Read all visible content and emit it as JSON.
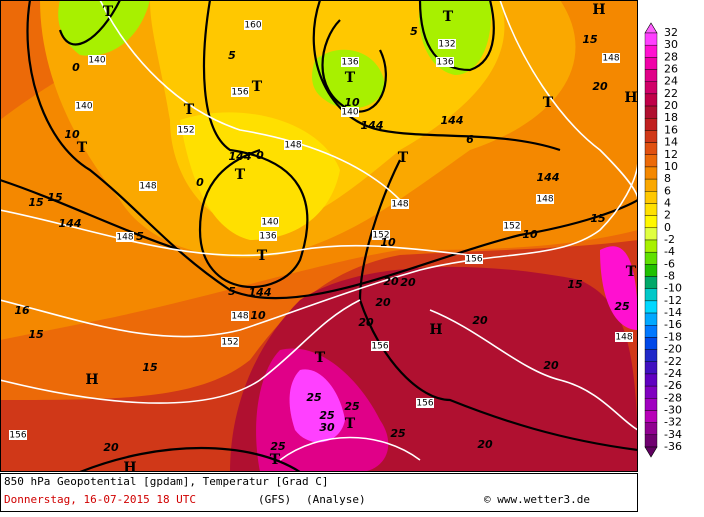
{
  "map": {
    "labels": [
      "T",
      "140",
      "0",
      "10",
      "T",
      "140",
      "160",
      "5",
      "156",
      "T",
      "T",
      "152",
      "148",
      "144",
      "15",
      "15",
      "148",
      "5",
      "144",
      "0",
      "T",
      "0",
      "148",
      "140",
      "136",
      "T",
      "5",
      "144",
      "148",
      "10",
      "152",
      "T",
      "136",
      "10",
      "140",
      "144",
      "T",
      "5",
      "132",
      "136",
      "144",
      "6",
      "T",
      "148",
      "152",
      "10",
      "156",
      "152",
      "10",
      "148",
      "144",
      "T",
      "H",
      "15",
      "148",
      "20",
      "H",
      "15",
      "T",
      "15",
      "25",
      "148",
      "20",
      "20",
      "20",
      "20",
      "H",
      "20",
      "156",
      "20",
      "156",
      "20",
      "25",
      "T",
      "25",
      "25",
      "25",
      "30",
      "T",
      "25",
      "T",
      "H",
      "15",
      "16",
      "15",
      "156",
      "20",
      "H"
    ]
  },
  "colorbar": {
    "ticks": [
      32,
      30,
      28,
      26,
      24,
      22,
      20,
      18,
      16,
      14,
      12,
      10,
      8,
      6,
      4,
      2,
      0,
      -2,
      -4,
      -6,
      -8,
      -10,
      -12,
      -14,
      -16,
      -18,
      -20,
      -22,
      -24,
      -26,
      -28,
      -30,
      -32,
      -34,
      -36
    ],
    "colors": [
      "#ff40ff",
      "#ff10d0",
      "#f000a8",
      "#e00088",
      "#d00068",
      "#c00048",
      "#b01030",
      "#c02020",
      "#d03818",
      "#e05010",
      "#ec6a08",
      "#f48800",
      "#faa800",
      "#ffc800",
      "#ffe000",
      "#fff800",
      "#e0ff40",
      "#a8f000",
      "#60e000",
      "#20c000",
      "#00a868",
      "#00c8c8",
      "#00d8ff",
      "#00a8ff",
      "#0078ff",
      "#0048e8",
      "#2028c8",
      "#4010c0",
      "#6000c0",
      "#8000c0",
      "#a000c0",
      "#b800b8",
      "#900090",
      "#700070"
    ],
    "top_color": "#ff60ff",
    "bottom_color": "#600060"
  },
  "footer": {
    "title": "850 hPa Geopotential [gpdam], Temperatur [Grad C]",
    "date": "Donnerstag, 16-07-2015  18 UTC",
    "model": "(GFS)",
    "analysis": "(Analyse)",
    "credit": "© www.wetter3.de"
  }
}
